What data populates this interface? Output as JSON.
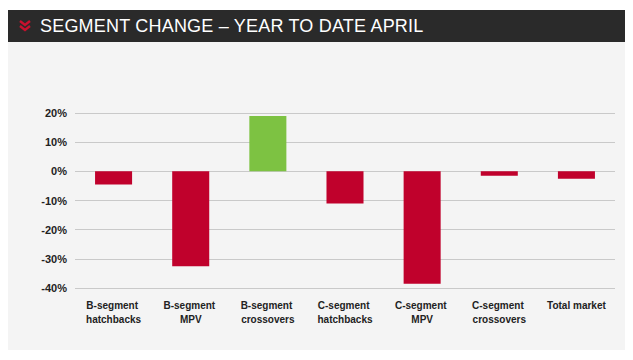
{
  "chart_data": {
    "type": "bar",
    "title": "SEGMENT CHANGE – YEAR TO DATE APRIL",
    "categories": [
      "B-segment hatchbacks",
      "B-segment MPV",
      "B-segment crossovers",
      "C-segment hatchbacks",
      "C-segment MPV",
      "C-segment crossovers",
      "Total market"
    ],
    "values": [
      -4.5,
      -32.5,
      19,
      -11,
      -38.5,
      -1.5,
      -2.5
    ],
    "colors": [
      "#c0012c",
      "#c0012c",
      "#7dc242",
      "#c0012c",
      "#c0012c",
      "#c0012c",
      "#c0012c"
    ],
    "ylim": [
      -40,
      20
    ],
    "yticks": [
      {
        "value": -40,
        "label": "-40%"
      },
      {
        "value": -30,
        "label": "-30%"
      },
      {
        "value": -20,
        "label": "-20%"
      },
      {
        "value": -10,
        "label": "-10%"
      },
      {
        "value": 0,
        "label": "0%"
      },
      {
        "value": 10,
        "label": "10%"
      },
      {
        "value": 20,
        "label": "20%"
      }
    ],
    "grid": true
  }
}
